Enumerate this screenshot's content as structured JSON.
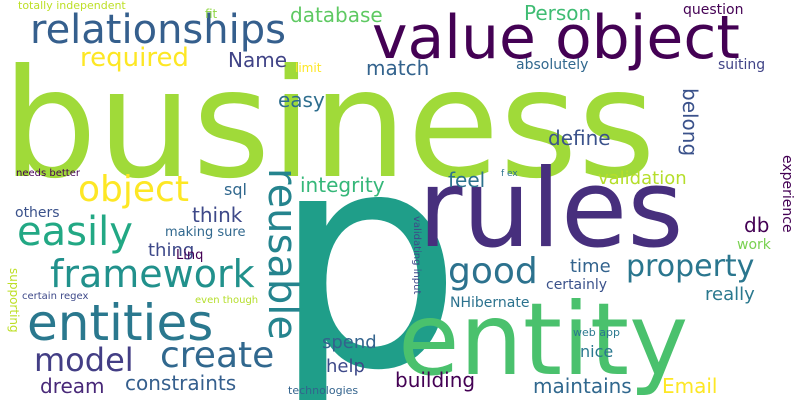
{
  "words": {
    "business": "business",
    "p": "p",
    "entity": "entity",
    "rules": "rules",
    "value_object": "value object",
    "relationships": "relationships",
    "entities": "entities",
    "framework": "framework",
    "easily": "easily",
    "object": "object",
    "reusable": "reusable",
    "create": "create",
    "model": "model",
    "good": "good",
    "property": "property",
    "required": "required",
    "database": "database",
    "person": "Person",
    "name": "Name",
    "match": "match",
    "easy": "easy",
    "define": "define",
    "belong": "belong",
    "integrity": "integrity",
    "feel": "feel",
    "validation": "validation",
    "think": "think",
    "thing": "thing",
    "sql": "sql",
    "db": "db",
    "time": "time",
    "really": "really",
    "certainly": "certainly",
    "constraints": "constraints",
    "dream": "dream",
    "building": "building",
    "maintains": "maintains",
    "email": "Email",
    "spend": "spend",
    "help": "help",
    "nice": "nice",
    "nhibernate": "NHibernate",
    "linq": "Linq",
    "making_sure": "making sure",
    "others": "others",
    "experience": "experience",
    "work": "work",
    "question": "question",
    "suiting": "suiting",
    "absolutely": "absolutely",
    "limit": "limit",
    "fit": "fit",
    "totally_independent": "totally independent",
    "needs_better": "needs better",
    "certain_regex": "certain regex",
    "even_though": "even though",
    "supporting": "supporting",
    "technologies": "technologies",
    "web_app": "web app",
    "validating_input": "validating input",
    "f_ex": "f ex"
  },
  "colors": {
    "lime": "#a0da39",
    "teal": "#1f9e89",
    "green": "#4ac16d",
    "indigo": "#472f7d",
    "purple": "#440154",
    "blue": "#31688e",
    "yellow": "#fde725",
    "steel": "#355f8d"
  }
}
